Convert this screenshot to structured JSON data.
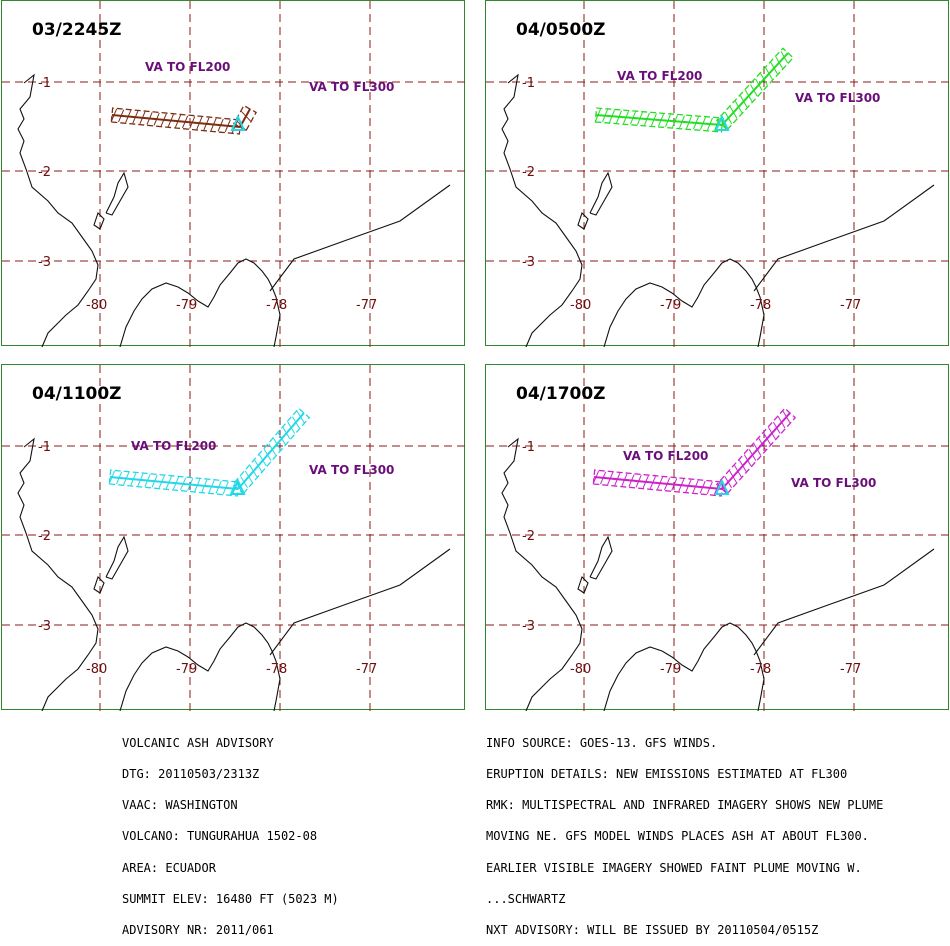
{
  "panels": [
    {
      "title": "03/2245Z",
      "color": "#7b2d12",
      "va": [
        "VA TO FL200",
        "VA TO FL300"
      ]
    },
    {
      "title": "04/0500Z",
      "color": "#22dd22",
      "va": [
        "VA TO FL200",
        "VA TO FL300"
      ]
    },
    {
      "title": "04/1100Z",
      "color": "#22d8e8",
      "va": [
        "VA TO FL200",
        "VA TO FL300"
      ]
    },
    {
      "title": "04/1700Z",
      "color": "#cc22cc",
      "va": [
        "VA TO FL200",
        "VA TO FL300"
      ]
    }
  ],
  "lat_labels": [
    "-1",
    "-2",
    "-3"
  ],
  "lon_labels": [
    "-80",
    "-79",
    "-78",
    "-77"
  ],
  "volcano_marker_color": "#22d8e8",
  "advisory_left": [
    "VOLCANIC ASH ADVISORY",
    "DTG: 20110503/2313Z",
    "VAAC: WASHINGTON",
    "VOLCANO: TUNGURAHUA 1502-08",
    "AREA: ECUADOR",
    "SUMMIT ELEV: 16480 FT (5023 M)",
    "ADVISORY NR: 2011/061"
  ],
  "advisory_right": [
    "INFO SOURCE: GOES-13. GFS WINDS.",
    "ERUPTION DETAILS: NEW EMISSIONS ESTIMATED AT FL300",
    "RMK: MULTISPECTRAL AND INFRARED IMAGERY SHOWS NEW PLUME",
    "MOVING NE. GFS MODEL WINDS PLACES ASH AT ABOUT FL300.",
    "EARLIER VISIBLE IMAGERY SHOWED FAINT PLUME MOVING W.",
    "...SCHWARTZ",
    "NXT ADVISORY: WILL BE ISSUED BY 20110504/0515Z"
  ]
}
